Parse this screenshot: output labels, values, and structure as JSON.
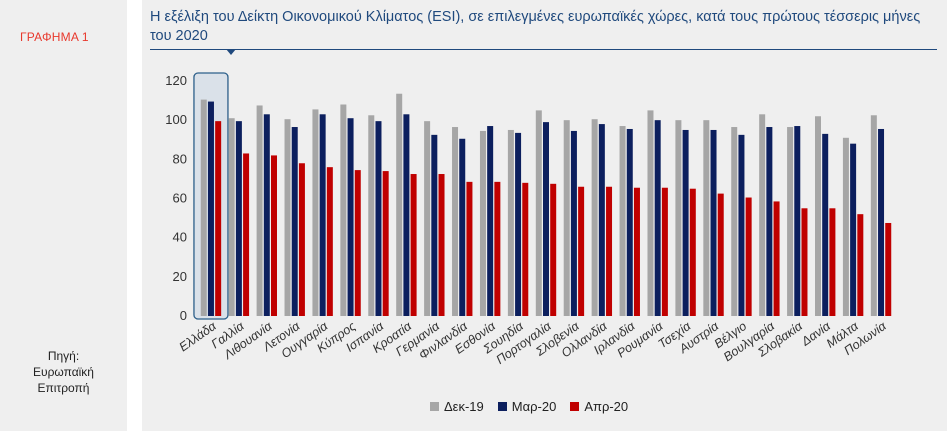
{
  "figure_label": "ΓΡΑΦΗΜΑ 1",
  "title": "Η εξέλιξη του Δείκτη Οικονομικού Κλίματος (ESI), σε επιλεγμένες ευρωπαϊκές χώρες, κατά τους πρώτους τέσσερις μήνες του 2020",
  "source": [
    "Πηγή:",
    "Ευρωπαϊκή",
    "Επιτροπή"
  ],
  "colors": {
    "dec": "#a6a6a6",
    "mar": "#0c1f5e",
    "apr": "#c00000",
    "title": "#1f497d",
    "highlight": "#2c5f8a"
  },
  "chart_data": {
    "type": "bar",
    "title": "Η εξέλιξη του Δείκτη Οικονομικού Κλίματος (ESI), σε επιλεγμένες ευρωπαϊκές χώρες, κατά τους πρώτους τέσσερις μήνες του 2020",
    "xlabel": "",
    "ylabel": "",
    "ylim": [
      0,
      120
    ],
    "yticks": [
      0,
      20,
      40,
      60,
      80,
      100,
      120
    ],
    "grid": false,
    "legend_position": "bottom",
    "highlighted_category": "Ελλάδα",
    "categories": [
      "Ελλάδα",
      "Γαλλία",
      "Λιθουανία",
      "Λετονία",
      "Ουγγαρία",
      "Κύπρος",
      "Ισπανία",
      "Κροατία",
      "Γερμανία",
      "Φινλανδία",
      "Εσθονία",
      "Σουηδία",
      "Πορτογαλία",
      "Σλοβενία",
      "Ολλανδία",
      "Ιρλανδία",
      "Ρουμανία",
      "Τσεχία",
      "Αυστρία",
      "Βέλγιο",
      "Βουλγαρία",
      "Σλοβακία",
      "Δανία",
      "Μάλτα",
      "Πολωνία"
    ],
    "series": [
      {
        "name": "Δεκ-19",
        "values": [
          110.5,
          101,
          107.5,
          100.5,
          105.5,
          108,
          102.5,
          113.5,
          99.5,
          96.5,
          94.5,
          95,
          105,
          100,
          100.5,
          97,
          105,
          100,
          100,
          96.5,
          103,
          96.5,
          102,
          91,
          102.5
        ]
      },
      {
        "name": "Μαρ-20",
        "values": [
          109.5,
          99.5,
          103,
          96.5,
          103,
          101,
          99.5,
          103,
          92.5,
          90.5,
          97,
          93.5,
          99,
          94.5,
          98,
          95.5,
          100,
          95,
          95,
          92.5,
          96.5,
          97,
          93,
          88,
          95.5
        ]
      },
      {
        "name": "Απρ-20",
        "values": [
          99.5,
          83,
          82,
          78,
          76,
          74.5,
          74,
          72.5,
          72.5,
          68.5,
          68.5,
          68,
          67.5,
          66,
          66,
          65.5,
          65.5,
          65,
          62.5,
          60.5,
          58.5,
          55,
          55,
          52,
          47.5
        ]
      }
    ]
  }
}
